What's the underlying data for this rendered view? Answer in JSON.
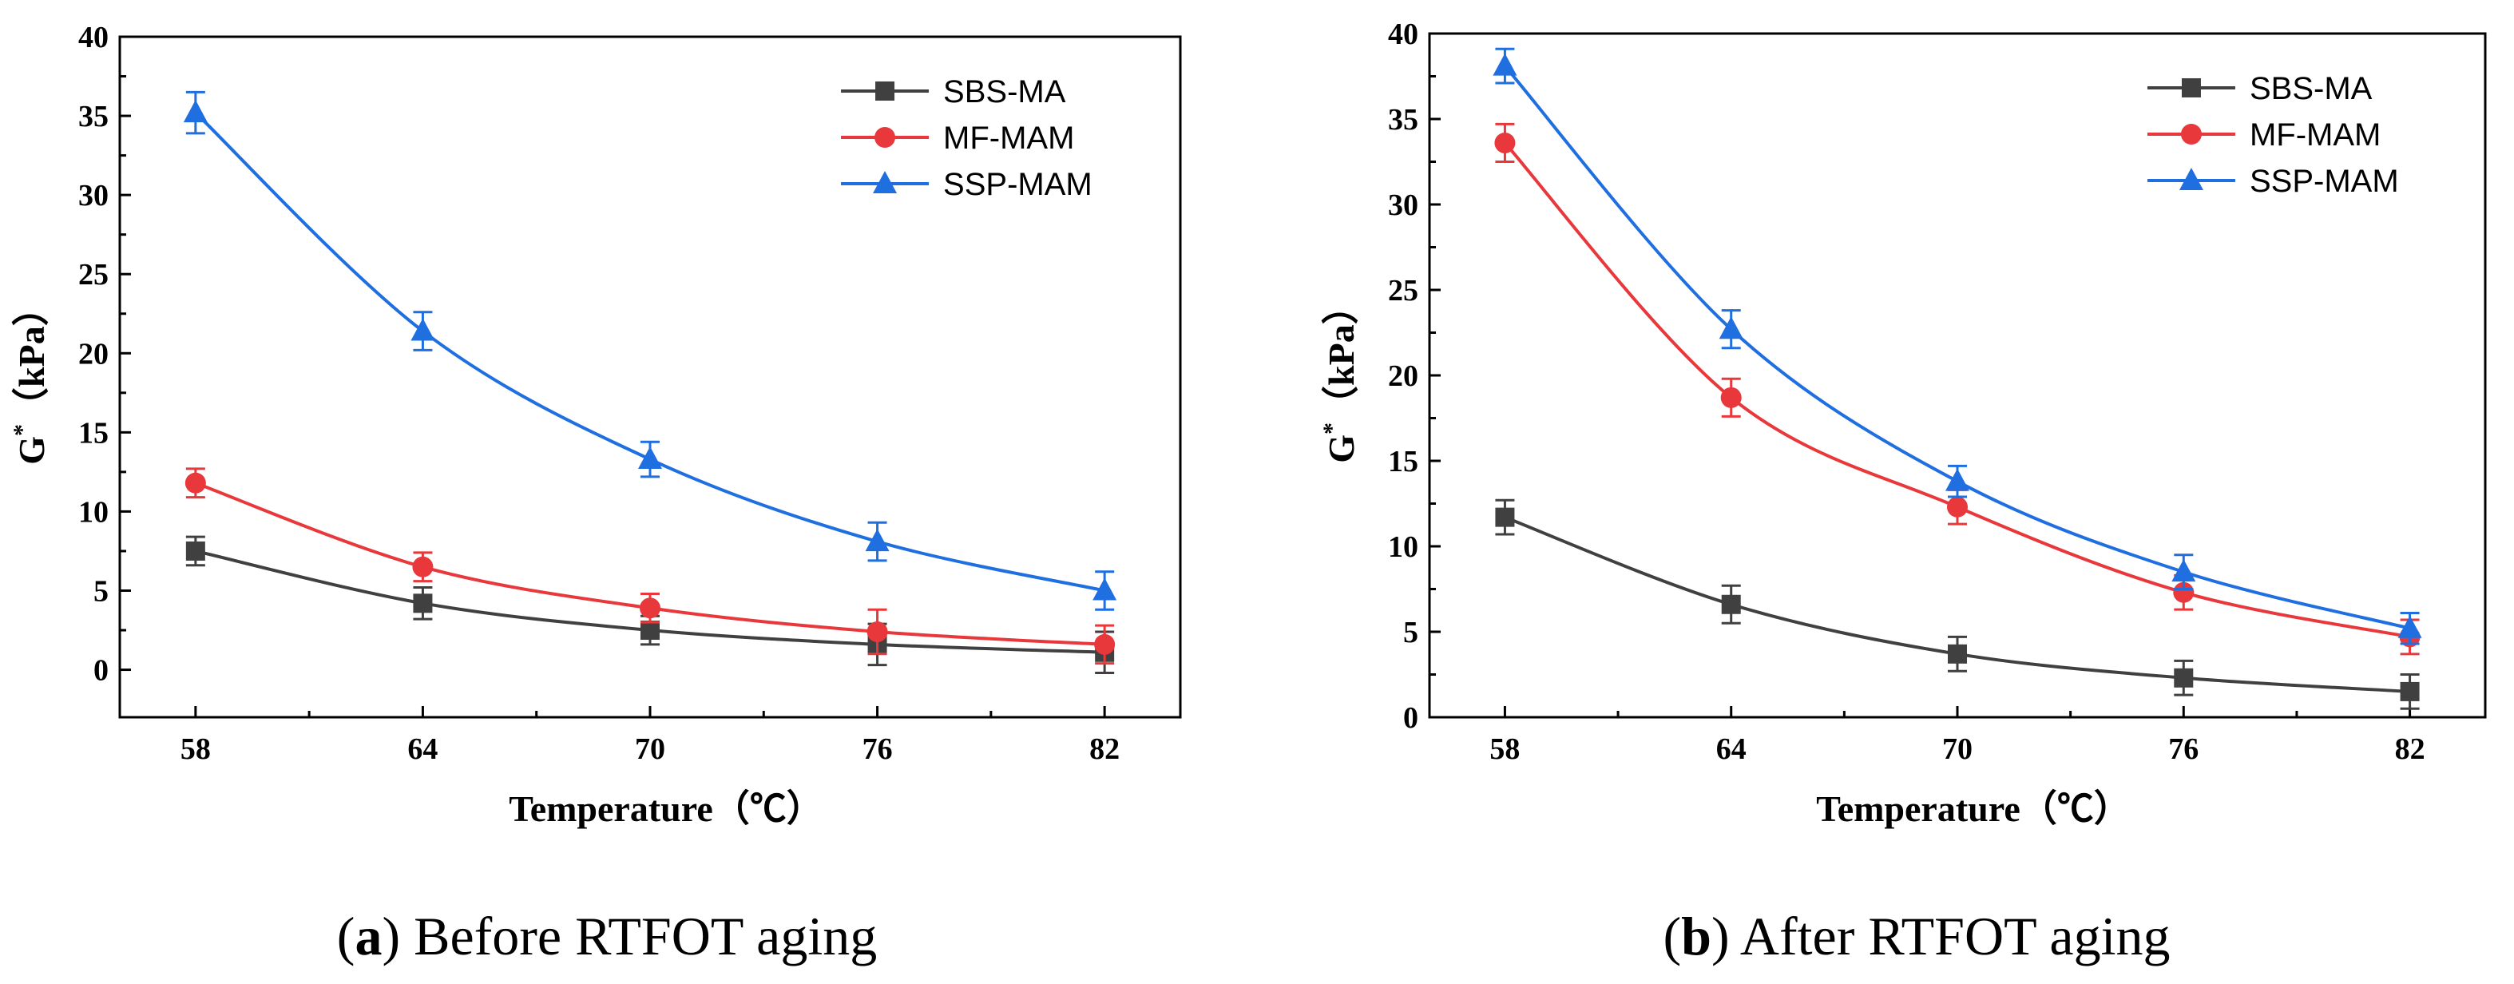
{
  "chart_data": [
    {
      "type": "line",
      "caption_letter": "a",
      "caption_text": "Before RTFOT aging",
      "xlabel": "Temperature（℃）",
      "ylabel_base": "G",
      "ylabel_sup": "*",
      "ylabel_unit": "（kPa）",
      "categories": [
        "58",
        "64",
        "70",
        "76",
        "82"
      ],
      "x": [
        58,
        64,
        70,
        76,
        82
      ],
      "xlim": [
        56,
        84
      ],
      "ylim": [
        -3,
        40
      ],
      "yticks": [
        0,
        5,
        10,
        15,
        20,
        25,
        30,
        35,
        40
      ],
      "legend_position": "top-right",
      "series": [
        {
          "name": "SBS-MA",
          "marker": "square",
          "color": "#404040",
          "values": [
            7.5,
            4.2,
            2.5,
            1.6,
            1.1
          ],
          "errors": [
            0.9,
            1.0,
            0.9,
            1.3,
            1.3
          ]
        },
        {
          "name": "MF-MAM",
          "marker": "circle",
          "color": "#e8383b",
          "values": [
            11.8,
            6.5,
            3.9,
            2.4,
            1.6
          ],
          "errors": [
            0.9,
            0.9,
            0.9,
            1.4,
            1.2
          ]
        },
        {
          "name": "SSP-MAM",
          "marker": "triangle",
          "color": "#1f6fe0",
          "values": [
            35.2,
            21.4,
            13.3,
            8.1,
            5.0
          ],
          "errors": [
            1.3,
            1.2,
            1.1,
            1.2,
            1.2
          ]
        }
      ]
    },
    {
      "type": "line",
      "caption_letter": "b",
      "caption_text": "After RTFOT aging",
      "xlabel": "Temperature（℃）",
      "ylabel_base": "G",
      "ylabel_sup": "*",
      "ylabel_unit": "（kPa）",
      "categories": [
        "58",
        "64",
        "70",
        "76",
        "82"
      ],
      "x": [
        58,
        64,
        70,
        76,
        82
      ],
      "xlim": [
        56,
        84
      ],
      "ylim": [
        0,
        40
      ],
      "yticks": [
        0,
        5,
        10,
        15,
        20,
        25,
        30,
        35,
        40
      ],
      "legend_position": "top-right",
      "series": [
        {
          "name": "SBS-MA",
          "marker": "square",
          "color": "#404040",
          "values": [
            11.7,
            6.6,
            3.7,
            2.3,
            1.5
          ],
          "errors": [
            1.0,
            1.1,
            1.0,
            1.0,
            1.0
          ]
        },
        {
          "name": "MF-MAM",
          "marker": "circle",
          "color": "#e8383b",
          "values": [
            33.6,
            18.7,
            12.3,
            7.3,
            4.7
          ],
          "errors": [
            1.1,
            1.1,
            1.0,
            1.0,
            1.0
          ]
        },
        {
          "name": "SSP-MAM",
          "marker": "triangle",
          "color": "#1f6fe0",
          "values": [
            38.1,
            22.7,
            13.8,
            8.5,
            5.2
          ],
          "errors": [
            1.0,
            1.1,
            0.9,
            1.0,
            0.9
          ]
        }
      ]
    }
  ]
}
